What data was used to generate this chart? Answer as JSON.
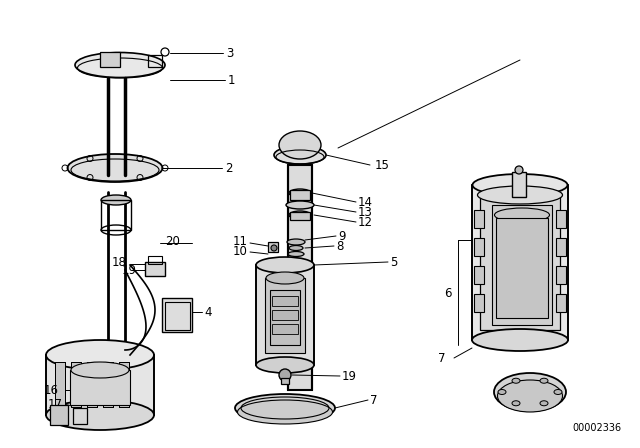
{
  "title": "",
  "background_color": "#ffffff",
  "diagram_id": "00002336",
  "line_color": "#000000",
  "text_color": "#000000",
  "font_size": 8.5,
  "line_width": 0.7
}
